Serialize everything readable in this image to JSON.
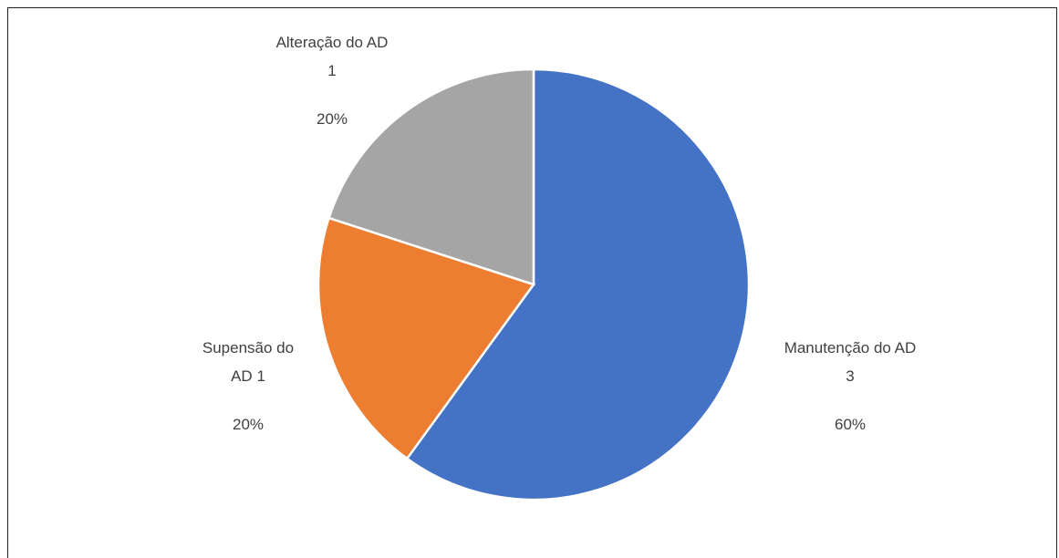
{
  "chart_data": {
    "type": "pie",
    "categories": [
      "Manutenção do AD",
      "Supensão do AD",
      "Alteração do AD"
    ],
    "values": [
      3,
      1,
      1
    ],
    "percentages": [
      60,
      20,
      20
    ],
    "percentage_labels": [
      "60%",
      "20%",
      "20%"
    ],
    "colors": [
      "#4472c4",
      "#ed7d31",
      "#a5a5a5"
    ]
  }
}
